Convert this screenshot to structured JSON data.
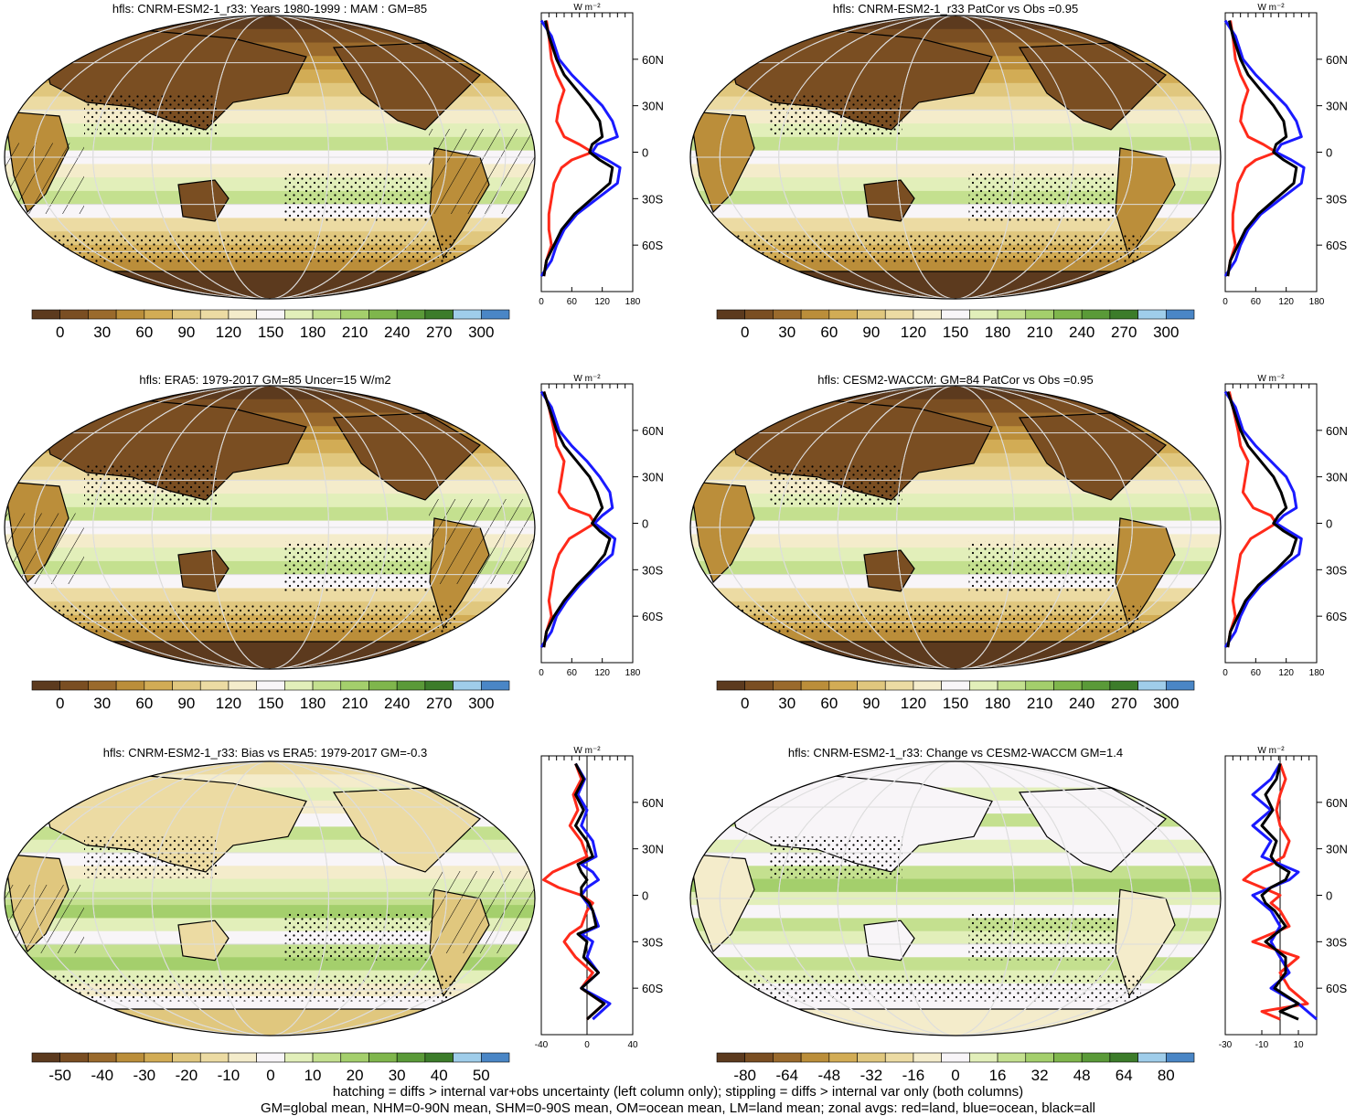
{
  "footer": {
    "line1": "hatching = diffs > internal var+obs uncertainty (left column only); stippling = diffs > internal var only (both columns)",
    "line2": "GM=global mean, NHM=0-90N mean, SHM=0-90S mean, OM=ocean mean, LM=land mean; zonal avgs: red=land, blue=ocean, black=all"
  },
  "units": "W m⁻²",
  "colors": {
    "land": "#ff2a1a",
    "ocean": "#1a1aff",
    "all": "#000000"
  },
  "brown_green_palette": [
    "#5c3a1e",
    "#7a4e22",
    "#9a6a2c",
    "#bb8e3a",
    "#d2ac55",
    "#e0c77e",
    "#ecdba3",
    "#f4eccb",
    "#f8f5f8",
    "#e2efba",
    "#c4e08f",
    "#a4cf6c",
    "#7fb64c",
    "#5a9a38",
    "#3c7c2a",
    "#9fcdea",
    "#4a86c6"
  ],
  "chart_data": [
    {
      "type": "heatmap",
      "panel": "mean-model",
      "title": "hfls: CNRM-ESM2-1_r33: Years 1980-1999 : MAM : GM=85",
      "colorbar_ticks": [
        "0",
        "30",
        "60",
        "90",
        "120",
        "150",
        "180",
        "210",
        "240",
        "270",
        "300"
      ],
      "zonal": {
        "xlim": [
          0,
          180
        ],
        "xticks": [
          "0",
          "60",
          "120",
          "180"
        ],
        "lat_ticks": [
          "60N",
          "30N",
          "0",
          "30S",
          "60S"
        ],
        "lat": [
          85,
          75,
          60,
          50,
          40,
          30,
          20,
          10,
          5,
          0,
          -5,
          -10,
          -20,
          -30,
          -40,
          -50,
          -60,
          -70,
          -80
        ],
        "land": [
          10,
          15,
          20,
          30,
          45,
          35,
          30,
          45,
          75,
          100,
          60,
          40,
          25,
          20,
          15,
          15,
          20,
          10,
          5
        ],
        "ocean": [
          0,
          20,
          35,
          60,
          90,
          120,
          140,
          150,
          110,
          100,
          130,
          155,
          150,
          110,
          70,
          45,
          30,
          20,
          0
        ],
        "all": [
          8,
          15,
          30,
          45,
          70,
          95,
          115,
          120,
          100,
          95,
          115,
          140,
          135,
          100,
          65,
          40,
          25,
          10,
          5
        ]
      }
    },
    {
      "type": "heatmap",
      "panel": "mean-obs",
      "title": "hfls: ERA5: 1979-2017 GM=85 Uncer=15 W/m2",
      "colorbar_ticks": [
        "0",
        "30",
        "60",
        "90",
        "120",
        "150",
        "180",
        "210",
        "240",
        "270",
        "300"
      ],
      "zonal": {
        "xlim": [
          0,
          180
        ],
        "xticks": [
          "0",
          "60",
          "120",
          "180"
        ],
        "lat_ticks": [
          "60N",
          "30N",
          "0",
          "30S",
          "60S"
        ],
        "lat": [
          85,
          75,
          60,
          50,
          40,
          30,
          20,
          10,
          5,
          0,
          -5,
          -10,
          -20,
          -30,
          -40,
          -50,
          -60,
          -70,
          -80
        ],
        "land": [
          5,
          15,
          25,
          30,
          45,
          40,
          35,
          55,
          95,
          105,
          80,
          55,
          35,
          25,
          20,
          15,
          20,
          10,
          5
        ],
        "ocean": [
          0,
          20,
          35,
          60,
          90,
          115,
          135,
          140,
          120,
          105,
          125,
          145,
          140,
          105,
          75,
          50,
          30,
          20,
          0
        ],
        "all": [
          5,
          15,
          30,
          45,
          70,
          95,
          110,
          120,
          110,
          100,
          115,
          135,
          125,
          100,
          70,
          45,
          25,
          10,
          5
        ]
      }
    },
    {
      "type": "heatmap",
      "panel": "mean-model-2",
      "title": "hfls: CNRM-ESM2-1_r33 PatCor vs Obs =0.95",
      "colorbar_ticks": [
        "0",
        "30",
        "60",
        "90",
        "120",
        "150",
        "180",
        "210",
        "240",
        "270",
        "300"
      ],
      "zonal": {
        "xlim": [
          0,
          180
        ],
        "xticks": [
          "0",
          "60",
          "120",
          "180"
        ],
        "lat_ticks": [
          "60N",
          "30N",
          "0",
          "30S",
          "60S"
        ],
        "lat": [
          85,
          75,
          60,
          50,
          40,
          30,
          20,
          10,
          5,
          0,
          -5,
          -10,
          -20,
          -30,
          -40,
          -50,
          -60,
          -70,
          -80
        ],
        "land": [
          10,
          15,
          20,
          30,
          45,
          35,
          30,
          45,
          75,
          100,
          60,
          40,
          25,
          20,
          15,
          15,
          20,
          10,
          5
        ],
        "ocean": [
          0,
          20,
          35,
          60,
          90,
          120,
          140,
          150,
          110,
          100,
          130,
          155,
          150,
          110,
          70,
          45,
          30,
          20,
          0
        ],
        "all": [
          8,
          15,
          30,
          45,
          70,
          95,
          115,
          120,
          100,
          95,
          115,
          140,
          135,
          100,
          65,
          40,
          25,
          10,
          5
        ]
      }
    },
    {
      "type": "heatmap",
      "panel": "mean-model-3",
      "title": "hfls: CESM2-WACCM: GM=84 PatCor vs Obs =0.95",
      "colorbar_ticks": [
        "0",
        "30",
        "60",
        "90",
        "120",
        "150",
        "180",
        "210",
        "240",
        "270",
        "300"
      ],
      "zonal": {
        "xlim": [
          0,
          180
        ],
        "xticks": [
          "0",
          "60",
          "120",
          "180"
        ],
        "lat_ticks": [
          "60N",
          "30N",
          "0",
          "30S",
          "60S"
        ],
        "lat": [
          85,
          75,
          60,
          50,
          40,
          30,
          20,
          10,
          5,
          0,
          -5,
          -10,
          -20,
          -30,
          -40,
          -50,
          -60,
          -70,
          -80
        ],
        "land": [
          8,
          15,
          25,
          30,
          45,
          40,
          35,
          55,
          90,
          100,
          75,
          50,
          30,
          25,
          20,
          15,
          20,
          10,
          5
        ],
        "ocean": [
          0,
          20,
          35,
          60,
          90,
          120,
          135,
          140,
          115,
          100,
          125,
          150,
          145,
          105,
          70,
          45,
          30,
          20,
          0
        ],
        "all": [
          5,
          15,
          30,
          45,
          70,
          95,
          110,
          120,
          105,
          95,
          115,
          140,
          130,
          100,
          65,
          40,
          25,
          10,
          5
        ]
      }
    },
    {
      "type": "heatmap",
      "panel": "bias",
      "title": "hfls: CNRM-ESM2-1_r33: Bias vs ERA5: 1979-2017 GM=-0.3",
      "colorbar_ticks": [
        "-50",
        "-40",
        "-30",
        "-20",
        "-10",
        "0",
        "10",
        "20",
        "30",
        "40",
        "50"
      ],
      "zonal": {
        "xlim": [
          -40,
          40
        ],
        "xticks": [
          "-40",
          "0",
          "40"
        ],
        "lat_ticks": [
          "60N",
          "30N",
          "0",
          "30S",
          "60S"
        ],
        "lat": [
          85,
          75,
          65,
          55,
          45,
          35,
          25,
          20,
          15,
          10,
          5,
          0,
          -5,
          -10,
          -20,
          -25,
          -30,
          -40,
          -50,
          -60,
          -70,
          -80
        ],
        "land": [
          -10,
          -5,
          -12,
          -8,
          -15,
          -5,
          0,
          -15,
          -30,
          -38,
          -25,
          -5,
          5,
          0,
          -5,
          -15,
          -20,
          -10,
          5,
          -5,
          15,
          0
        ],
        "ocean": [
          -10,
          -2,
          -8,
          0,
          -5,
          5,
          8,
          -5,
          5,
          10,
          0,
          -5,
          0,
          5,
          10,
          -5,
          5,
          0,
          10,
          -5,
          20,
          5
        ],
        "all": [
          -10,
          -3,
          -10,
          -3,
          -10,
          0,
          5,
          -8,
          -5,
          0,
          -5,
          -5,
          2,
          5,
          8,
          -8,
          0,
          -3,
          10,
          -5,
          15,
          0
        ]
      }
    },
    {
      "type": "heatmap",
      "panel": "change",
      "title": "hfls: CNRM-ESM2-1_r33: Change vs CESM2-WACCM GM=1.4",
      "colorbar_ticks": [
        "-80",
        "-64",
        "-48",
        "-32",
        "-16",
        "0",
        "16",
        "32",
        "48",
        "64",
        "80"
      ],
      "zonal": {
        "xlim": [
          -30,
          20
        ],
        "xticks": [
          "-30",
          "-10",
          "10"
        ],
        "lat_ticks": [
          "60N",
          "30N",
          "0",
          "30S",
          "60S"
        ],
        "lat": [
          85,
          75,
          65,
          55,
          45,
          35,
          25,
          20,
          15,
          10,
          5,
          0,
          -5,
          -10,
          -20,
          -30,
          -40,
          -50,
          -60,
          -70,
          -75,
          -80
        ],
        "land": [
          0,
          3,
          0,
          -2,
          0,
          5,
          2,
          -5,
          -15,
          -20,
          -10,
          0,
          -5,
          0,
          5,
          -15,
          10,
          0,
          5,
          15,
          -10,
          0
        ],
        "ocean": [
          0,
          -5,
          -15,
          -5,
          -15,
          -5,
          -10,
          0,
          10,
          5,
          -5,
          -15,
          -10,
          -5,
          0,
          -5,
          0,
          5,
          -5,
          10,
          15,
          20
        ],
        "all": [
          0,
          -2,
          -8,
          -4,
          -10,
          -2,
          -5,
          -2,
          5,
          3,
          -5,
          -10,
          -8,
          -3,
          3,
          -8,
          3,
          3,
          -3,
          10,
          0,
          10
        ]
      }
    }
  ]
}
